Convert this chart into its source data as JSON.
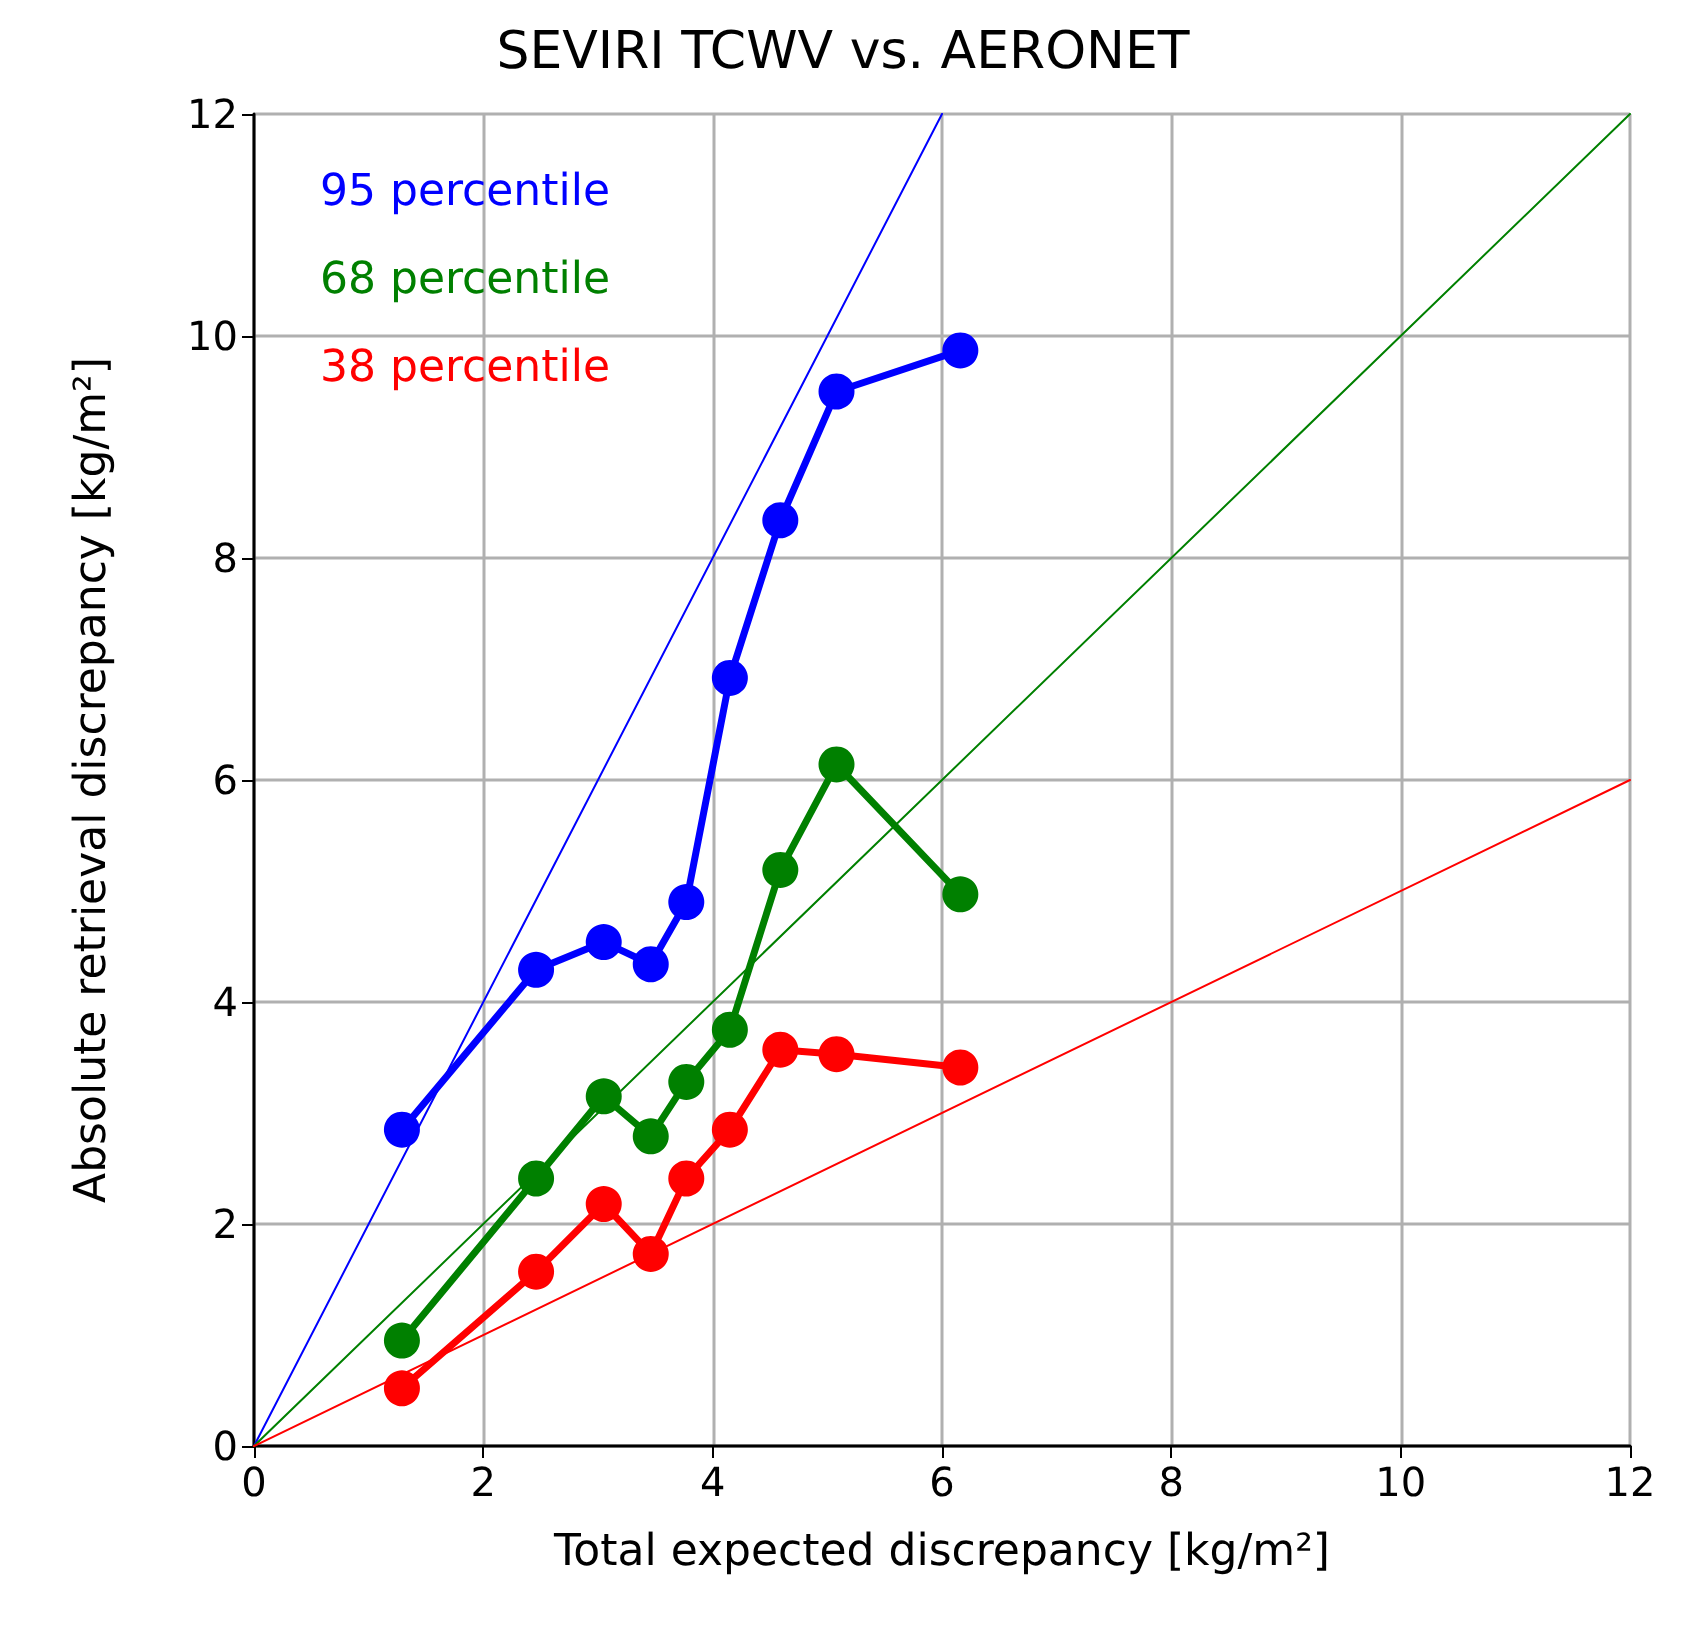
{
  "chart_data": {
    "type": "line",
    "title": "SEVIRI TCWV vs. AERONET",
    "xlabel": "Total expected discrepancy [kg/m²]",
    "ylabel": "Absolute retrieval discrepancy [kg/m²]",
    "x": [
      1.29,
      2.46,
      3.05,
      3.46,
      3.77,
      4.15,
      4.59,
      5.08,
      6.16
    ],
    "series": [
      {
        "name": "95 percentile",
        "color": "#0000ff",
        "values": [
          2.85,
          4.29,
          4.54,
          4.34,
          4.9,
          6.92,
          8.34,
          9.5,
          9.87
        ]
      },
      {
        "name": "68 percentile",
        "color": "#008000",
        "values": [
          0.95,
          2.41,
          3.15,
          2.79,
          3.28,
          3.75,
          5.19,
          6.14,
          4.97
        ]
      },
      {
        "name": "38 percentile",
        "color": "#ff0000",
        "values": [
          0.52,
          1.57,
          2.18,
          1.73,
          2.41,
          2.85,
          3.57,
          3.53,
          3.41
        ]
      },
      {
        "type": "line",
        "color": "#0000ff",
        "x": [
          0,
          6
        ],
        "values": [
          0,
          12
        ],
        "marker": "none"
      },
      {
        "type": "line",
        "color": "#008000",
        "x": [
          0,
          12
        ],
        "values": [
          0,
          12
        ],
        "marker": "none"
      },
      {
        "type": "line",
        "color": "#ff0000",
        "x": [
          0,
          12
        ],
        "values": [
          0,
          6
        ],
        "marker": "none"
      }
    ],
    "xlim": [
      0,
      12
    ],
    "xticks": [
      0,
      2,
      4,
      6,
      8,
      10,
      12
    ],
    "ylim": [
      0,
      12
    ],
    "yticks": [
      0,
      2,
      4,
      6,
      8,
      10,
      12
    ],
    "grid": true,
    "legend": "top left",
    "marker": "circle",
    "line_style": "solid"
  }
}
